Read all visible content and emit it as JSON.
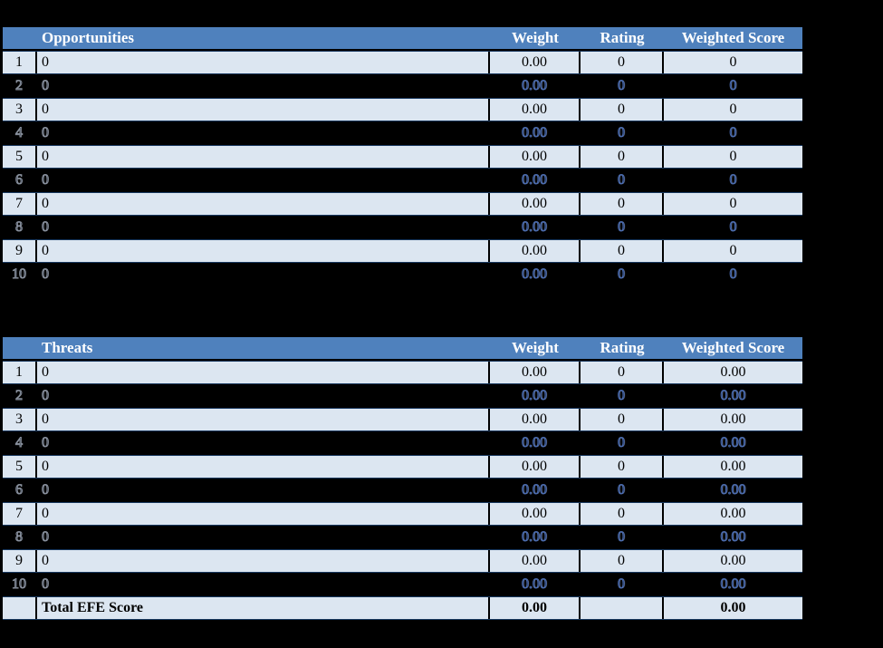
{
  "colors": {
    "page_background": "#000000",
    "header_background": "#4F81BD",
    "header_text": "#FFFFFF",
    "banded_row_background": "#DCE6F1",
    "band_edge_line": "#17375E",
    "dark_row_text_fringe_blue": "#5276BE",
    "dark_row_text_fringe_gray": "#9EA6B4",
    "cell_text": "#000000"
  },
  "opportunities": {
    "title": "Opportunities",
    "columns": {
      "weight": "Weight",
      "rating": "Rating",
      "weighted_score": "Weighted Score"
    },
    "rows": [
      {
        "num": "1",
        "factor": "0",
        "weight": "0.00",
        "rating": "0",
        "score": "0"
      },
      {
        "num": "2",
        "factor": "0",
        "weight": "0.00",
        "rating": "0",
        "score": "0"
      },
      {
        "num": "3",
        "factor": "0",
        "weight": "0.00",
        "rating": "0",
        "score": "0"
      },
      {
        "num": "4",
        "factor": "0",
        "weight": "0.00",
        "rating": "0",
        "score": "0"
      },
      {
        "num": "5",
        "factor": "0",
        "weight": "0.00",
        "rating": "0",
        "score": "0"
      },
      {
        "num": "6",
        "factor": "0",
        "weight": "0.00",
        "rating": "0",
        "score": "0"
      },
      {
        "num": "7",
        "factor": "0",
        "weight": "0.00",
        "rating": "0",
        "score": "0"
      },
      {
        "num": "8",
        "factor": "0",
        "weight": "0.00",
        "rating": "0",
        "score": "0"
      },
      {
        "num": "9",
        "factor": "0",
        "weight": "0.00",
        "rating": "0",
        "score": "0"
      },
      {
        "num": "10",
        "factor": "0",
        "weight": "0.00",
        "rating": "0",
        "score": "0"
      }
    ]
  },
  "threats": {
    "title": "Threats",
    "columns": {
      "weight": "Weight",
      "rating": "Rating",
      "weighted_score": "Weighted Score"
    },
    "rows": [
      {
        "num": "1",
        "factor": "0",
        "weight": "0.00",
        "rating": "0",
        "score": "0.00"
      },
      {
        "num": "2",
        "factor": "0",
        "weight": "0.00",
        "rating": "0",
        "score": "0.00"
      },
      {
        "num": "3",
        "factor": "0",
        "weight": "0.00",
        "rating": "0",
        "score": "0.00"
      },
      {
        "num": "4",
        "factor": "0",
        "weight": "0.00",
        "rating": "0",
        "score": "0.00"
      },
      {
        "num": "5",
        "factor": "0",
        "weight": "0.00",
        "rating": "0",
        "score": "0.00"
      },
      {
        "num": "6",
        "factor": "0",
        "weight": "0.00",
        "rating": "0",
        "score": "0.00"
      },
      {
        "num": "7",
        "factor": "0",
        "weight": "0.00",
        "rating": "0",
        "score": "0.00"
      },
      {
        "num": "8",
        "factor": "0",
        "weight": "0.00",
        "rating": "0",
        "score": "0.00"
      },
      {
        "num": "9",
        "factor": "0",
        "weight": "0.00",
        "rating": "0",
        "score": "0.00"
      },
      {
        "num": "10",
        "factor": "0",
        "weight": "0.00",
        "rating": "0",
        "score": "0.00"
      }
    ],
    "total_row": {
      "label": "Total EFE Score",
      "weight": "0.00",
      "rating": "",
      "score": "0.00"
    }
  }
}
